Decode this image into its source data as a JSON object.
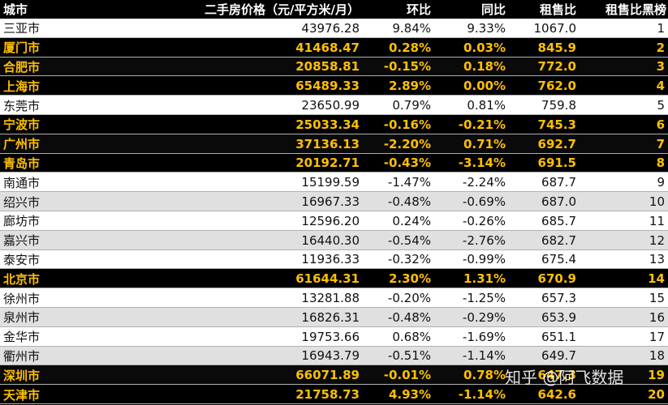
{
  "header": {
    "city": "城市",
    "price": "二手房价格（元/平方米/月）",
    "hb": "环比",
    "tb": "同比",
    "ratio": "租售比",
    "rank": "租售比黑榜"
  },
  "rows": [
    {
      "city": "三亚市",
      "price": "43976.28",
      "hb": "9.84%",
      "tb": "9.33%",
      "ratio": "1067.0",
      "rank": "1",
      "highlight": false
    },
    {
      "city": "厦门市",
      "price": "41468.47",
      "hb": "0.28%",
      "tb": "0.03%",
      "ratio": "845.9",
      "rank": "2",
      "highlight": true
    },
    {
      "city": "合肥市",
      "price": "20858.81",
      "hb": "-0.15%",
      "tb": "0.18%",
      "ratio": "772.0",
      "rank": "3",
      "highlight": true
    },
    {
      "city": "上海市",
      "price": "65489.33",
      "hb": "2.89%",
      "tb": "0.00%",
      "ratio": "762.0",
      "rank": "4",
      "highlight": true
    },
    {
      "city": "东莞市",
      "price": "23650.99",
      "hb": "0.79%",
      "tb": "0.81%",
      "ratio": "759.8",
      "rank": "5",
      "highlight": false
    },
    {
      "city": "宁波市",
      "price": "25033.34",
      "hb": "-0.16%",
      "tb": "-0.21%",
      "ratio": "745.3",
      "rank": "6",
      "highlight": true
    },
    {
      "city": "广州市",
      "price": "37136.13",
      "hb": "-2.20%",
      "tb": "0.71%",
      "ratio": "692.7",
      "rank": "7",
      "highlight": true
    },
    {
      "city": "青岛市",
      "price": "20192.71",
      "hb": "-0.43%",
      "tb": "-3.14%",
      "ratio": "691.5",
      "rank": "8",
      "highlight": true
    },
    {
      "city": "南通市",
      "price": "15199.59",
      "hb": "-1.47%",
      "tb": "-2.24%",
      "ratio": "687.7",
      "rank": "9",
      "highlight": false
    },
    {
      "city": "绍兴市",
      "price": "16967.33",
      "hb": "-0.48%",
      "tb": "-0.69%",
      "ratio": "687.0",
      "rank": "10",
      "highlight": false
    },
    {
      "city": "廊坊市",
      "price": "12596.20",
      "hb": "0.24%",
      "tb": "-0.26%",
      "ratio": "685.7",
      "rank": "11",
      "highlight": false
    },
    {
      "city": "嘉兴市",
      "price": "16440.30",
      "hb": "-0.54%",
      "tb": "-2.76%",
      "ratio": "682.7",
      "rank": "12",
      "highlight": false
    },
    {
      "city": "泰安市",
      "price": "11936.33",
      "hb": "-0.32%",
      "tb": "-0.99%",
      "ratio": "675.4",
      "rank": "13",
      "highlight": false
    },
    {
      "city": "北京市",
      "price": "61644.31",
      "hb": "2.30%",
      "tb": "1.31%",
      "ratio": "670.9",
      "rank": "14",
      "highlight": true
    },
    {
      "city": "徐州市",
      "price": "13281.88",
      "hb": "-0.20%",
      "tb": "-1.25%",
      "ratio": "657.3",
      "rank": "15",
      "highlight": false
    },
    {
      "city": "泉州市",
      "price": "16826.31",
      "hb": "-0.48%",
      "tb": "-0.29%",
      "ratio": "653.9",
      "rank": "16",
      "highlight": false
    },
    {
      "city": "金华市",
      "price": "19753.66",
      "hb": "0.68%",
      "tb": "-1.69%",
      "ratio": "651.1",
      "rank": "17",
      "highlight": false
    },
    {
      "city": "衢州市",
      "price": "16943.79",
      "hb": "-0.51%",
      "tb": "-1.14%",
      "ratio": "649.7",
      "rank": "18",
      "highlight": false
    },
    {
      "city": "深圳市",
      "price": "66071.89",
      "hb": "-0.01%",
      "tb": "0.78%",
      "ratio": "647.3",
      "rank": "19",
      "highlight": true
    },
    {
      "city": "天津市",
      "price": "21758.73",
      "hb": "4.93%",
      "tb": "-1.14%",
      "ratio": "642.6",
      "rank": "20",
      "highlight": true
    }
  ],
  "watermark": {
    "text": "知乎 @阿飞数据"
  },
  "colors": {
    "highlight_text": "#ffc000",
    "highlight_bg": "#000000",
    "row_light": "#ffffff",
    "row_dark": "#e0e0e0"
  }
}
